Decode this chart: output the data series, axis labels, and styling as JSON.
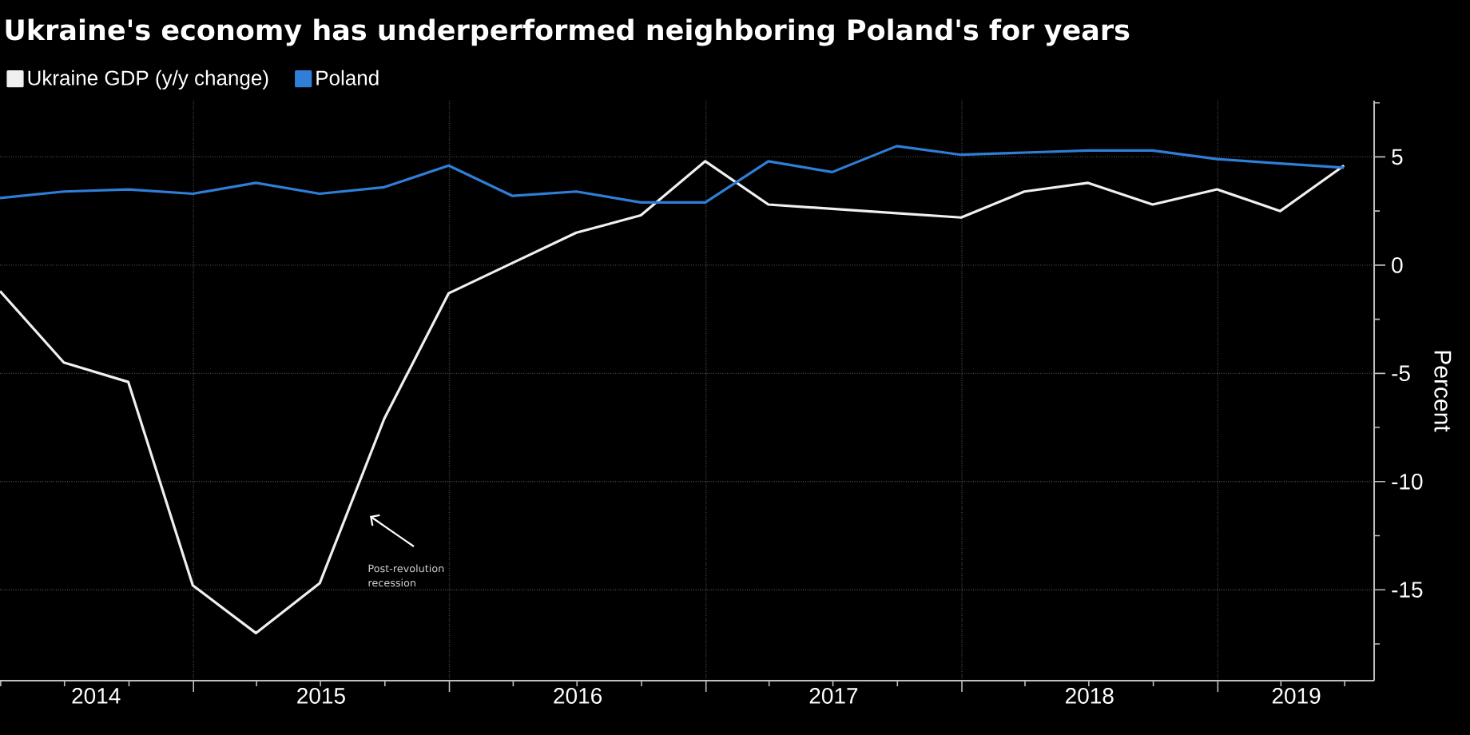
{
  "chart_data": {
    "type": "line",
    "title": "Ukraine's economy has underperformed neighboring Poland's for years",
    "ylabel": "Percent",
    "x": [
      "2014-03-31",
      "2014-06-30",
      "2014-09-30",
      "2014-12-31",
      "2015-03-31",
      "2015-06-30",
      "2015-09-30",
      "2015-12-31",
      "2016-03-31",
      "2016-06-30",
      "2016-09-30",
      "2016-12-31",
      "2017-03-31",
      "2017-06-30",
      "2017-09-30",
      "2017-12-31",
      "2018-03-31",
      "2018-06-30",
      "2018-09-30",
      "2018-12-31",
      "2019-03-31",
      "2019-06-30"
    ],
    "series": [
      {
        "name": "Ukraine GDP (y/y change)",
        "color": "#f0f0f0",
        "values": [
          -1.2,
          -4.5,
          -5.4,
          -14.8,
          -17.0,
          -14.7,
          -7.1,
          -1.3,
          0.1,
          1.5,
          2.3,
          4.8,
          2.8,
          2.6,
          2.4,
          2.2,
          3.4,
          3.8,
          2.8,
          3.5,
          2.5,
          4.6
        ]
      },
      {
        "name": "Poland",
        "color": "#2f7ed8",
        "values": [
          3.1,
          3.4,
          3.5,
          3.3,
          3.8,
          3.3,
          3.6,
          4.6,
          3.2,
          3.4,
          2.9,
          2.9,
          4.8,
          4.3,
          5.5,
          5.1,
          5.2,
          5.3,
          5.3,
          4.9,
          4.7,
          4.5
        ]
      }
    ],
    "xlim": [
      "2014-03-31",
      "2019-08-12"
    ],
    "xticks": [
      {
        "value": "2014-04-01",
        "label": null
      },
      {
        "value": "2014-07-01",
        "label": null
      },
      {
        "value": "2014-08-15",
        "label": "2014"
      },
      {
        "value": "2014-10-01",
        "label": null
      },
      {
        "value": "2015-01-01",
        "label": null
      },
      {
        "value": "2015-04-01",
        "label": null
      },
      {
        "value": "2015-07-01",
        "label": null
      },
      {
        "value": "2015-07-02",
        "label": "2015"
      },
      {
        "value": "2015-10-01",
        "label": null
      },
      {
        "value": "2016-01-01",
        "label": null
      },
      {
        "value": "2016-04-01",
        "label": null
      },
      {
        "value": "2016-07-01",
        "label": null
      },
      {
        "value": "2016-07-02",
        "label": "2016"
      },
      {
        "value": "2016-10-01",
        "label": null
      },
      {
        "value": "2017-01-01",
        "label": null
      },
      {
        "value": "2017-04-01",
        "label": null
      },
      {
        "value": "2017-07-01",
        "label": null
      },
      {
        "value": "2017-07-02",
        "label": "2017"
      },
      {
        "value": "2017-10-01",
        "label": null
      },
      {
        "value": "2018-01-01",
        "label": null
      },
      {
        "value": "2018-04-01",
        "label": null
      },
      {
        "value": "2018-07-01",
        "label": null
      },
      {
        "value": "2018-07-02",
        "label": "2018"
      },
      {
        "value": "2018-10-01",
        "label": null
      },
      {
        "value": "2019-01-01",
        "label": null
      },
      {
        "value": "2019-04-01",
        "label": null
      },
      {
        "value": "2019-04-23",
        "label": "2019"
      },
      {
        "value": "2019-07-01",
        "label": null
      }
    ],
    "ylim": [
      -19.2,
      7.6
    ],
    "yticks": [
      {
        "value": -17.5,
        "label": null
      },
      -15,
      {
        "value": -12.5,
        "label": null
      },
      -10,
      {
        "value": -7.5,
        "label": null
      },
      -5,
      {
        "value": -2.5,
        "label": null
      },
      0,
      {
        "value": 2.5,
        "label": null
      },
      5,
      {
        "value": 7.5,
        "label": null
      }
    ],
    "grid": true,
    "legend": "top left",
    "annotations": [
      "Post-revolution recession"
    ]
  }
}
